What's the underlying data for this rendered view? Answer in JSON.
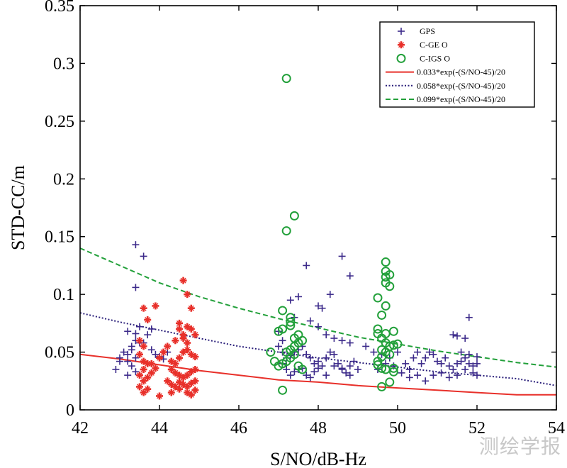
{
  "chart_data": {
    "type": "scatter",
    "title": "",
    "xlabel": "S/NO/dB-Hz",
    "ylabel": "STD-CC/m",
    "xlim": [
      42,
      54
    ],
    "ylim": [
      0,
      0.35
    ],
    "xticks": [
      42,
      44,
      46,
      48,
      50,
      52,
      54
    ],
    "yticks": [
      0,
      0.05,
      0.1,
      0.15,
      0.2,
      0.25,
      0.3,
      0.35
    ],
    "xtick_labels": [
      "42",
      "44",
      "46",
      "48",
      "50",
      "52",
      "54"
    ],
    "ytick_labels": [
      "0",
      "0.05",
      "0.1",
      "0.15",
      "0.2",
      "0.25",
      "0.3",
      "0.35"
    ],
    "grid": false,
    "legend_position": "top-right",
    "series": [
      {
        "name": "GPS",
        "kind": "scatter",
        "marker": "plus",
        "color": "#3c2a8a",
        "points": [
          [
            43.4,
            0.143
          ],
          [
            43.6,
            0.133
          ],
          [
            43.4,
            0.106
          ],
          [
            43.5,
            0.072
          ],
          [
            43.4,
            0.066
          ],
          [
            43.2,
            0.068
          ],
          [
            43.3,
            0.055
          ],
          [
            43.4,
            0.06
          ],
          [
            43.5,
            0.058
          ],
          [
            43.3,
            0.052
          ],
          [
            43.2,
            0.048
          ],
          [
            43.1,
            0.05
          ],
          [
            43.0,
            0.045
          ],
          [
            43.2,
            0.042
          ],
          [
            43.4,
            0.045
          ],
          [
            43.3,
            0.038
          ],
          [
            43.0,
            0.042
          ],
          [
            42.9,
            0.035
          ],
          [
            43.2,
            0.03
          ],
          [
            43.4,
            0.033
          ],
          [
            43.6,
            0.058
          ],
          [
            43.8,
            0.07
          ],
          [
            43.7,
            0.065
          ],
          [
            43.9,
            0.048
          ],
          [
            44.0,
            0.046
          ],
          [
            44.2,
            0.05
          ],
          [
            44.1,
            0.044
          ],
          [
            43.8,
            0.052
          ],
          [
            47.0,
            0.068
          ],
          [
            47.1,
            0.06
          ],
          [
            47.3,
            0.095
          ],
          [
            47.5,
            0.098
          ],
          [
            47.7,
            0.125
          ],
          [
            48.0,
            0.09
          ],
          [
            48.1,
            0.088
          ],
          [
            48.3,
            0.1
          ],
          [
            48.6,
            0.133
          ],
          [
            48.8,
            0.116
          ],
          [
            47.4,
            0.08
          ],
          [
            47.8,
            0.077
          ],
          [
            48.0,
            0.072
          ],
          [
            48.2,
            0.065
          ],
          [
            48.4,
            0.062
          ],
          [
            48.6,
            0.06
          ],
          [
            48.8,
            0.058
          ],
          [
            47.0,
            0.055
          ],
          [
            47.1,
            0.05
          ],
          [
            47.2,
            0.045
          ],
          [
            47.3,
            0.047
          ],
          [
            47.4,
            0.05
          ],
          [
            47.5,
            0.052
          ],
          [
            47.6,
            0.055
          ],
          [
            47.7,
            0.048
          ],
          [
            47.8,
            0.045
          ],
          [
            47.9,
            0.04
          ],
          [
            48.0,
            0.042
          ],
          [
            48.1,
            0.038
          ],
          [
            48.2,
            0.045
          ],
          [
            48.3,
            0.05
          ],
          [
            48.4,
            0.048
          ],
          [
            48.5,
            0.04
          ],
          [
            48.6,
            0.035
          ],
          [
            48.7,
            0.032
          ],
          [
            48.8,
            0.038
          ],
          [
            48.9,
            0.042
          ],
          [
            47.1,
            0.04
          ],
          [
            47.2,
            0.035
          ],
          [
            47.3,
            0.03
          ],
          [
            47.4,
            0.033
          ],
          [
            47.5,
            0.035
          ],
          [
            47.6,
            0.036
          ],
          [
            47.7,
            0.03
          ],
          [
            47.8,
            0.028
          ],
          [
            47.9,
            0.033
          ],
          [
            48.0,
            0.036
          ],
          [
            48.2,
            0.03
          ],
          [
            48.4,
            0.038
          ],
          [
            48.6,
            0.036
          ],
          [
            48.8,
            0.03
          ],
          [
            49.0,
            0.035
          ],
          [
            49.2,
            0.055
          ],
          [
            49.4,
            0.05
          ],
          [
            49.6,
            0.048
          ],
          [
            49.8,
            0.045
          ],
          [
            50.0,
            0.05
          ],
          [
            50.2,
            0.04
          ],
          [
            50.3,
            0.035
          ],
          [
            50.4,
            0.045
          ],
          [
            50.5,
            0.05
          ],
          [
            50.6,
            0.04
          ],
          [
            50.7,
            0.045
          ],
          [
            50.8,
            0.05
          ],
          [
            50.9,
            0.048
          ],
          [
            51.0,
            0.042
          ],
          [
            51.1,
            0.04
          ],
          [
            51.2,
            0.045
          ],
          [
            51.3,
            0.038
          ],
          [
            51.4,
            0.035
          ],
          [
            51.5,
            0.04
          ],
          [
            51.6,
            0.042
          ],
          [
            51.7,
            0.045
          ],
          [
            51.8,
            0.04
          ],
          [
            51.9,
            0.038
          ],
          [
            52.0,
            0.04
          ],
          [
            50.1,
            0.032
          ],
          [
            50.3,
            0.028
          ],
          [
            50.5,
            0.03
          ],
          [
            50.7,
            0.025
          ],
          [
            50.9,
            0.03
          ],
          [
            51.1,
            0.032
          ],
          [
            51.3,
            0.028
          ],
          [
            51.5,
            0.03
          ],
          [
            51.7,
            0.035
          ],
          [
            51.9,
            0.032
          ],
          [
            52.0,
            0.03
          ],
          [
            51.4,
            0.065
          ],
          [
            51.5,
            0.064
          ],
          [
            51.7,
            0.062
          ],
          [
            51.8,
            0.08
          ],
          [
            51.6,
            0.05
          ],
          [
            51.8,
            0.048
          ],
          [
            52.0,
            0.046
          ],
          [
            49.5,
            0.035
          ],
          [
            49.7,
            0.04
          ],
          [
            49.9,
            0.038
          ]
        ]
      },
      {
        "name": "C-GE O",
        "kind": "scatter",
        "marker": "asterisk",
        "color": "#e8302a",
        "points": [
          [
            44.6,
            0.112
          ],
          [
            44.7,
            0.1
          ],
          [
            43.6,
            0.088
          ],
          [
            43.9,
            0.09
          ],
          [
            43.7,
            0.078
          ],
          [
            44.8,
            0.088
          ],
          [
            44.5,
            0.07
          ],
          [
            44.9,
            0.065
          ],
          [
            44.6,
            0.062
          ],
          [
            44.7,
            0.058
          ],
          [
            43.5,
            0.06
          ],
          [
            43.6,
            0.055
          ],
          [
            43.5,
            0.048
          ],
          [
            43.6,
            0.042
          ],
          [
            43.7,
            0.04
          ],
          [
            43.6,
            0.035
          ],
          [
            43.5,
            0.03
          ],
          [
            43.7,
            0.028
          ],
          [
            43.6,
            0.025
          ],
          [
            43.5,
            0.02
          ],
          [
            43.7,
            0.018
          ],
          [
            43.6,
            0.015
          ],
          [
            43.8,
            0.032
          ],
          [
            43.9,
            0.036
          ],
          [
            43.8,
            0.04
          ],
          [
            44.0,
            0.045
          ],
          [
            44.1,
            0.05
          ],
          [
            44.3,
            0.042
          ],
          [
            44.4,
            0.04
          ],
          [
            44.5,
            0.045
          ],
          [
            44.6,
            0.05
          ],
          [
            44.7,
            0.052
          ],
          [
            44.8,
            0.048
          ],
          [
            44.9,
            0.046
          ],
          [
            44.3,
            0.035
          ],
          [
            44.4,
            0.032
          ],
          [
            44.5,
            0.03
          ],
          [
            44.6,
            0.028
          ],
          [
            44.7,
            0.03
          ],
          [
            44.8,
            0.033
          ],
          [
            44.9,
            0.035
          ],
          [
            44.2,
            0.025
          ],
          [
            44.3,
            0.022
          ],
          [
            44.4,
            0.02
          ],
          [
            44.5,
            0.024
          ],
          [
            44.6,
            0.022
          ],
          [
            44.7,
            0.02
          ],
          [
            44.8,
            0.023
          ],
          [
            44.9,
            0.025
          ],
          [
            44.3,
            0.015
          ],
          [
            44.5,
            0.018
          ],
          [
            44.7,
            0.015
          ],
          [
            44.9,
            0.017
          ],
          [
            44.0,
            0.012
          ],
          [
            44.8,
            0.013
          ],
          [
            44.2,
            0.055
          ],
          [
            44.4,
            0.06
          ],
          [
            44.6,
            0.065
          ],
          [
            44.8,
            0.07
          ],
          [
            44.5,
            0.075
          ],
          [
            44.7,
            0.072
          ]
        ]
      },
      {
        "name": "C-IGS O",
        "kind": "scatter",
        "marker": "circle",
        "color": "#22a03a",
        "points": [
          [
            47.2,
            0.287
          ],
          [
            47.4,
            0.168
          ],
          [
            47.2,
            0.155
          ],
          [
            47.1,
            0.086
          ],
          [
            47.3,
            0.08
          ],
          [
            47.3,
            0.076
          ],
          [
            47.3,
            0.073
          ],
          [
            47.1,
            0.07
          ],
          [
            47.0,
            0.068
          ],
          [
            47.5,
            0.065
          ],
          [
            47.4,
            0.062
          ],
          [
            47.6,
            0.06
          ],
          [
            47.5,
            0.058
          ],
          [
            47.4,
            0.055
          ],
          [
            47.3,
            0.052
          ],
          [
            47.2,
            0.05
          ],
          [
            47.4,
            0.048
          ],
          [
            47.3,
            0.045
          ],
          [
            47.2,
            0.042
          ],
          [
            47.1,
            0.04
          ],
          [
            47.0,
            0.038
          ],
          [
            46.9,
            0.042
          ],
          [
            46.8,
            0.05
          ],
          [
            47.5,
            0.038
          ],
          [
            47.6,
            0.035
          ],
          [
            47.1,
            0.017
          ],
          [
            49.7,
            0.128
          ],
          [
            49.7,
            0.12
          ],
          [
            49.8,
            0.117
          ],
          [
            49.7,
            0.115
          ],
          [
            49.7,
            0.11
          ],
          [
            49.8,
            0.107
          ],
          [
            49.5,
            0.097
          ],
          [
            49.7,
            0.09
          ],
          [
            49.6,
            0.082
          ],
          [
            49.5,
            0.07
          ],
          [
            49.7,
            0.066
          ],
          [
            49.5,
            0.066
          ],
          [
            49.6,
            0.062
          ],
          [
            49.9,
            0.068
          ],
          [
            49.7,
            0.058
          ],
          [
            49.8,
            0.055
          ],
          [
            49.9,
            0.056
          ],
          [
            50.0,
            0.057
          ],
          [
            49.6,
            0.052
          ],
          [
            49.7,
            0.05
          ],
          [
            49.8,
            0.048
          ],
          [
            49.6,
            0.046
          ],
          [
            49.5,
            0.042
          ],
          [
            49.5,
            0.039
          ],
          [
            49.6,
            0.036
          ],
          [
            49.7,
            0.035
          ],
          [
            49.9,
            0.036
          ],
          [
            49.9,
            0.033
          ],
          [
            49.8,
            0.024
          ],
          [
            49.6,
            0.02
          ]
        ]
      },
      {
        "name": "0.033*exp(-(S/NO-45)/20",
        "kind": "line",
        "style": "solid",
        "color": "#e8302a",
        "coef": 0.033,
        "points": [
          [
            42,
            0.048
          ],
          [
            43,
            0.044
          ],
          [
            44,
            0.039
          ],
          [
            45,
            0.034
          ],
          [
            46,
            0.03
          ],
          [
            47,
            0.026
          ],
          [
            48,
            0.024
          ],
          [
            49,
            0.021
          ],
          [
            50,
            0.019
          ],
          [
            51,
            0.017
          ],
          [
            52,
            0.015
          ],
          [
            53,
            0.013
          ],
          [
            54,
            0.013
          ]
        ]
      },
      {
        "name": "0.058*exp(-(S/NO-45)/20",
        "kind": "line",
        "style": "dotted",
        "color": "#2a1f7a",
        "coef": 0.058,
        "points": [
          [
            42,
            0.084
          ],
          [
            43,
            0.076
          ],
          [
            44,
            0.069
          ],
          [
            45,
            0.062
          ],
          [
            46,
            0.055
          ],
          [
            47,
            0.05
          ],
          [
            48,
            0.045
          ],
          [
            49,
            0.041
          ],
          [
            50,
            0.037
          ],
          [
            51,
            0.033
          ],
          [
            52,
            0.03
          ],
          [
            53,
            0.027
          ],
          [
            54,
            0.021
          ]
        ]
      },
      {
        "name": "0.099*exp(-(S/NO-45)/20",
        "kind": "line",
        "style": "dashed",
        "color": "#22a03a",
        "coef": 0.099,
        "points": [
          [
            42,
            0.14
          ],
          [
            43,
            0.125
          ],
          [
            44,
            0.11
          ],
          [
            45,
            0.098
          ],
          [
            46,
            0.088
          ],
          [
            47,
            0.079
          ],
          [
            48,
            0.071
          ],
          [
            49,
            0.063
          ],
          [
            50,
            0.057
          ],
          [
            51,
            0.051
          ],
          [
            52,
            0.046
          ],
          [
            53,
            0.041
          ],
          [
            54,
            0.037
          ]
        ]
      }
    ]
  },
  "watermark": "测绘学报"
}
